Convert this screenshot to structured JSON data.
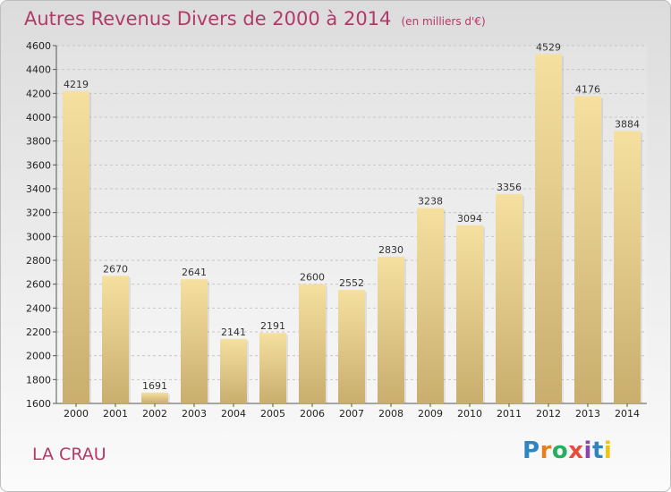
{
  "chart_data": {
    "type": "bar",
    "title": "Autres Revenus Divers de 2000 à 2014",
    "subtitle": "(en milliers d'€)",
    "categories": [
      "2000",
      "2001",
      "2002",
      "2003",
      "2004",
      "2005",
      "2006",
      "2007",
      "2008",
      "2009",
      "2010",
      "2011",
      "2012",
      "2013",
      "2014"
    ],
    "values": [
      4219,
      2670,
      1691,
      2641,
      2141,
      2191,
      2600,
      2552,
      2830,
      3238,
      3094,
      3356,
      4529,
      4176,
      3884
    ],
    "ylim": [
      1600,
      4600
    ],
    "yticks": [
      1600,
      1800,
      2000,
      2200,
      2400,
      2600,
      2800,
      3000,
      3200,
      3400,
      3600,
      3800,
      4000,
      4200,
      4400,
      4600
    ],
    "grid": true,
    "bar_color_top": "#f5e0a0",
    "bar_color_bottom": "#c9ae6e"
  },
  "commune": "LA CRAU",
  "brand": {
    "letters": [
      "P",
      "r",
      "o",
      "x",
      "i",
      "t",
      "i"
    ],
    "colors": [
      "#2e86c1",
      "#e67e22",
      "#27ae60",
      "#e74c3c",
      "#8e44ad",
      "#2e86c1",
      "#f1c40f"
    ]
  },
  "theme": {
    "accent": "#b23a68"
  }
}
